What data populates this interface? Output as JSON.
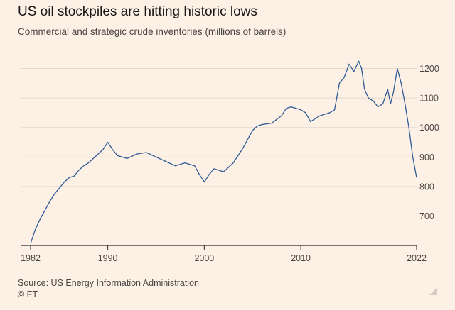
{
  "title": "US oil stockpiles are hitting historic lows",
  "subtitle": "Commercial and strategic crude inventories (millions of barrels)",
  "source": "Source: US Energy Information Administration",
  "credit": "© FT",
  "colors": {
    "line": "#2f5b95",
    "grid": "#e5d9cd",
    "axis": "#2b2928",
    "background": "#fdf1e6",
    "text": "#4a4542"
  },
  "chart_data": {
    "type": "line",
    "x_ticks": [
      "1982",
      "1990",
      "2000",
      "2010",
      "2022"
    ],
    "y_ticks": [
      "700",
      "800",
      "900",
      "1000",
      "1100",
      "1200"
    ],
    "xlim": [
      1982,
      2022
    ],
    "ylim": [
      600,
      1235
    ],
    "y_axis_side": "right",
    "grid": "horizontal",
    "series": [
      {
        "x": [
          1982.0,
          1982.5,
          1983.0,
          1983.5,
          1984.0,
          1984.5,
          1985.0,
          1985.5,
          1986.0,
          1986.5,
          1987.0,
          1987.5,
          1988.0,
          1988.5,
          1989.0,
          1989.5,
          1990.0,
          1990.5,
          1991.0,
          1992.0,
          1993.0,
          1994.0,
          1995.0,
          1996.0,
          1997.0,
          1998.0,
          1999.0,
          1999.5,
          2000.0,
          2000.5,
          2001.0,
          2002.0,
          2003.0,
          2004.0,
          2005.0,
          2005.5,
          2006.0,
          2007.0,
          2008.0,
          2008.5,
          2009.0,
          2010.0,
          2010.5,
          2011.0,
          2012.0,
          2013.0,
          2013.5,
          2014.0,
          2014.5,
          2015.0,
          2015.5,
          2016.0,
          2016.3,
          2016.6,
          2017.0,
          2017.5,
          2018.0,
          2018.5,
          2019.0,
          2019.3,
          2019.6,
          2020.0,
          2020.4,
          2020.8,
          2021.2,
          2021.6,
          2022.0
        ],
        "y": [
          607,
          655,
          690,
          720,
          750,
          775,
          795,
          815,
          830,
          835,
          855,
          870,
          880,
          895,
          910,
          925,
          950,
          925,
          905,
          895,
          910,
          915,
          900,
          885,
          870,
          880,
          870,
          840,
          815,
          840,
          860,
          850,
          880,
          930,
          990,
          1005,
          1010,
          1015,
          1040,
          1065,
          1070,
          1060,
          1050,
          1020,
          1040,
          1050,
          1060,
          1150,
          1170,
          1215,
          1190,
          1225,
          1200,
          1130,
          1100,
          1090,
          1070,
          1080,
          1130,
          1080,
          1120,
          1200,
          1150,
          1080,
          1000,
          900,
          830
        ]
      }
    ]
  }
}
